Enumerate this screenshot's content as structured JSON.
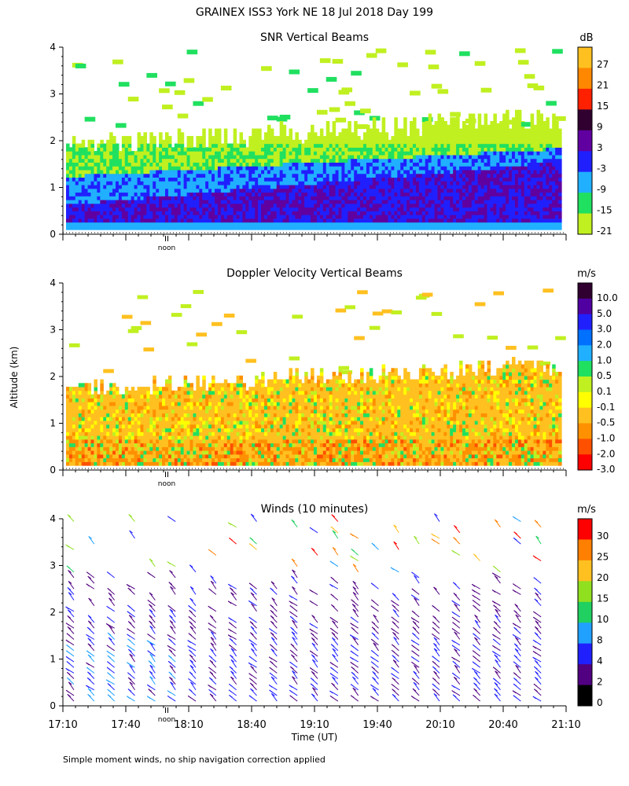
{
  "header": {
    "title": "GRAINEX ISS3 York NE  18 Jul 2018 Day 199",
    "y_label": "Altitude (km)",
    "x_label": "Time (UT)",
    "footnote": "Simple moment winds, no ship navigation correction applied",
    "noon_label": "noon"
  },
  "chart_data": [
    {
      "type": "heatmap",
      "title": "SNR Vertical Beams",
      "unit": "dB",
      "ylim": [
        0,
        4
      ],
      "yticks": [
        "0",
        "1",
        "2",
        "3",
        "4"
      ],
      "xlim": [
        "17:10",
        "21:10"
      ],
      "colorbar": {
        "labels": [
          "27",
          "21",
          "15",
          "9",
          "3",
          "-3",
          "-9",
          "-15",
          "-21"
        ],
        "colors": [
          "#ffc020",
          "#ff8800",
          "#ff2000",
          "#300030",
          "#6000a0",
          "#2020ff",
          "#20b0ff",
          "#20e060",
          "#c0f020"
        ]
      },
      "description_bands": [
        {
          "range_km": [
            0,
            1
          ],
          "dominant_dB": "-9 to 3"
        },
        {
          "range_km": [
            1,
            2
          ],
          "dominant_dB": "-15 to -3"
        },
        {
          "range_km": [
            2,
            4
          ],
          "dominant_dB": "-21 to -15"
        }
      ]
    },
    {
      "type": "heatmap",
      "title": "Doppler Velocity Vertical Beams",
      "unit": "m/s",
      "ylim": [
        0,
        4
      ],
      "yticks": [
        "0",
        "1",
        "2",
        "3",
        "4"
      ],
      "xlim": [
        "17:10",
        "21:10"
      ],
      "colorbar": {
        "labels": [
          "10.0",
          "5.0",
          "3.0",
          "2.0",
          "1.0",
          "0.5",
          "0.1",
          "-0.1",
          "-0.5",
          "-1.0",
          "-2.0",
          "-3.0"
        ],
        "colors": [
          "#300030",
          "#5000a0",
          "#2020ff",
          "#0070ff",
          "#20b0ff",
          "#20e060",
          "#c0f020",
          "#ffff00",
          "#ffc020",
          "#ff9000",
          "#ff5000",
          "#ff0000"
        ]
      }
    },
    {
      "type": "scatter",
      "title": "Winds (10 minutes)",
      "unit": "m/s",
      "ylim": [
        0,
        4
      ],
      "yticks": [
        "0",
        "1",
        "2",
        "3",
        "4"
      ],
      "x_ticks": [
        "17:10",
        "17:40",
        "18:10",
        "18:40",
        "19:10",
        "19:40",
        "20:10",
        "20:40",
        "21:10"
      ],
      "colorbar": {
        "labels": [
          "30",
          "25",
          "20",
          "15",
          "10",
          "8",
          "4",
          "2",
          "0"
        ],
        "colors": [
          "#ff0000",
          "#ff8000",
          "#ffc020",
          "#90e020",
          "#20d060",
          "#20a0ff",
          "#2020ff",
          "#500080",
          "#000000"
        ]
      }
    }
  ]
}
